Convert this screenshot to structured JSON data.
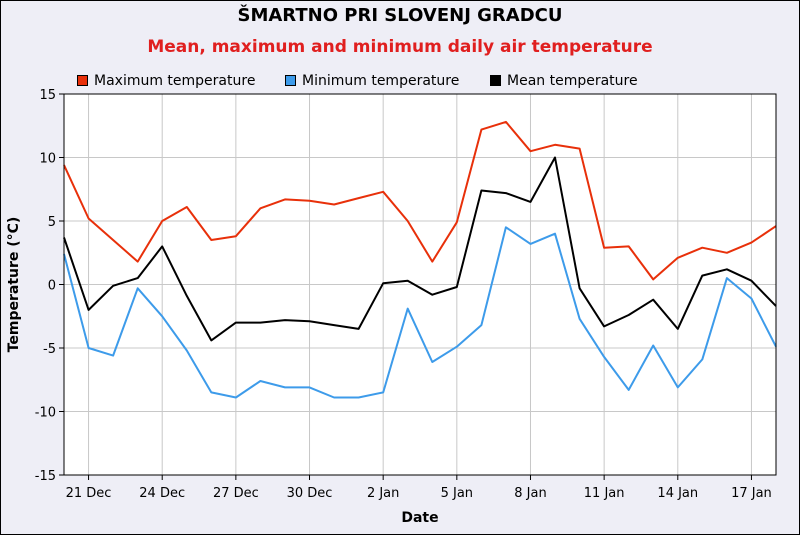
{
  "header": {
    "title": "ŠMARTNO PRI SLOVENJ GRADCU",
    "subtitle": "Mean, maximum and minimum daily air temperature"
  },
  "colors": {
    "max": "#e8300a",
    "min": "#3d9bea",
    "mean": "#000000",
    "title": "#000000",
    "subtitle": "#e01f1f",
    "background": "#eeeef6",
    "plot_background": "#ffffff",
    "grid": "#c8c8c8"
  },
  "chart_data": {
    "type": "line",
    "title": "ŠMARTNO PRI SLOVENJ GRADCU",
    "subtitle": "Mean, maximum and minimum daily air temperature",
    "xlabel": "Date",
    "ylabel": "Temperature (°C)",
    "ylim": [
      -15,
      15
    ],
    "yticks": [
      -15,
      -10,
      -5,
      0,
      5,
      10,
      15
    ],
    "x": [
      "20 Dec",
      "21 Dec",
      "22 Dec",
      "23 Dec",
      "24 Dec",
      "25 Dec",
      "26 Dec",
      "27 Dec",
      "28 Dec",
      "29 Dec",
      "30 Dec",
      "31 Dec",
      "1 Jan",
      "2 Jan",
      "3 Jan",
      "4 Jan",
      "5 Jan",
      "6 Jan",
      "7 Jan",
      "8 Jan",
      "9 Jan",
      "10 Jan",
      "11 Jan",
      "12 Jan",
      "13 Jan",
      "14 Jan",
      "15 Jan",
      "16 Jan",
      "17 Jan",
      "18 Jan"
    ],
    "xticks": [
      "21 Dec",
      "24 Dec",
      "27 Dec",
      "30 Dec",
      "2 Jan",
      "5 Jan",
      "8 Jan",
      "11 Jan",
      "14 Jan",
      "17 Jan"
    ],
    "grid": true,
    "legend_position": "top",
    "series": [
      {
        "name": "Maximum temperature",
        "color": "#e8300a",
        "values": [
          9.4,
          5.2,
          3.5,
          1.8,
          5.0,
          6.1,
          3.5,
          3.8,
          6.0,
          6.7,
          6.6,
          6.3,
          6.8,
          7.3,
          5.0,
          1.8,
          4.9,
          12.2,
          12.8,
          10.5,
          11.0,
          10.7,
          2.9,
          3.0,
          0.4,
          2.1,
          2.9,
          2.5,
          3.3,
          4.6
        ]
      },
      {
        "name": "Minimum temperature",
        "color": "#3d9bea",
        "values": [
          2.4,
          -5.0,
          -5.6,
          -0.3,
          -2.5,
          -5.2,
          -8.5,
          -8.9,
          -7.6,
          -8.1,
          -8.1,
          -8.9,
          -8.9,
          -8.5,
          -1.9,
          -6.1,
          -4.9,
          -3.2,
          4.5,
          3.2,
          4.0,
          -2.7,
          -5.7,
          -8.3,
          -4.8,
          -8.1,
          -5.9,
          0.5,
          -1.1,
          -4.9
        ]
      },
      {
        "name": "Mean temperature",
        "color": "#000000",
        "values": [
          3.7,
          -2.0,
          -0.1,
          0.5,
          3.0,
          -0.9,
          -4.4,
          -3.0,
          -3.0,
          -2.8,
          -2.9,
          -3.2,
          -3.5,
          0.1,
          0.3,
          -0.8,
          -0.2,
          7.4,
          7.2,
          6.5,
          10.0,
          -0.3,
          -3.3,
          -2.4,
          -1.2,
          -3.5,
          0.7,
          1.2,
          0.3,
          -1.7
        ]
      }
    ]
  }
}
